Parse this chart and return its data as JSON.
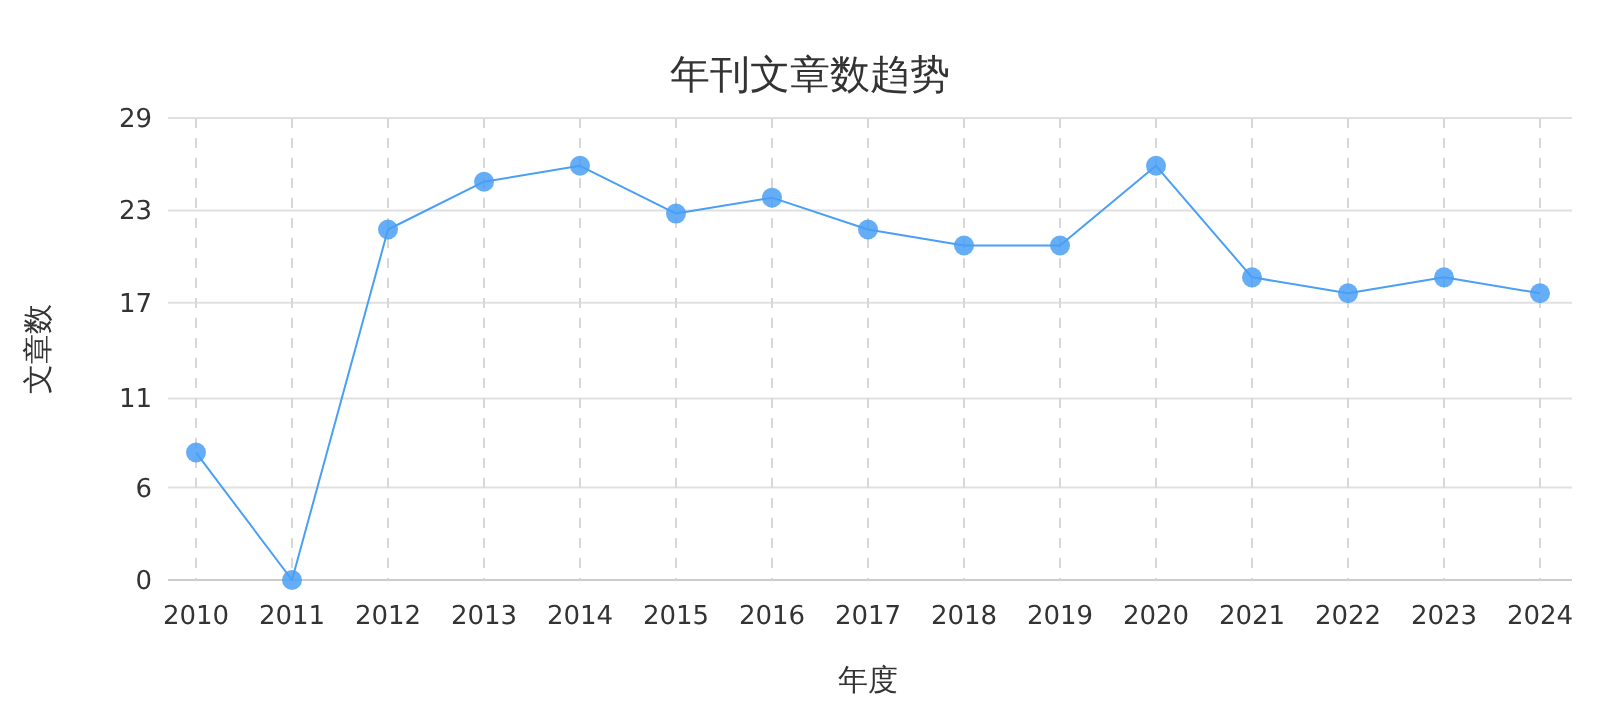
{
  "chart_data": {
    "type": "line",
    "title": "年刊文章数趋势",
    "xlabel": "年度",
    "ylabel": "文章数",
    "categories": [
      "2010",
      "2011",
      "2012",
      "2013",
      "2014",
      "2015",
      "2016",
      "2017",
      "2018",
      "2019",
      "2020",
      "2021",
      "2022",
      "2023",
      "2024"
    ],
    "series": [
      {
        "color": "#4a9ff5",
        "values": [
          8,
          0,
          22,
          25,
          26,
          23,
          24,
          22,
          21,
          21,
          26,
          19,
          18,
          19,
          18
        ]
      }
    ],
    "ylim": [
      0,
      29
    ],
    "yticks": [
      0,
      {
        "value": 5.8,
        "label": "6"
      },
      {
        "value": 11.4,
        "label": "11"
      },
      {
        "value": 17.4,
        "label": "17"
      },
      {
        "value": 23.2,
        "label": "23"
      },
      29
    ],
    "grid": true,
    "marker": "circle",
    "line_style": "solid"
  }
}
